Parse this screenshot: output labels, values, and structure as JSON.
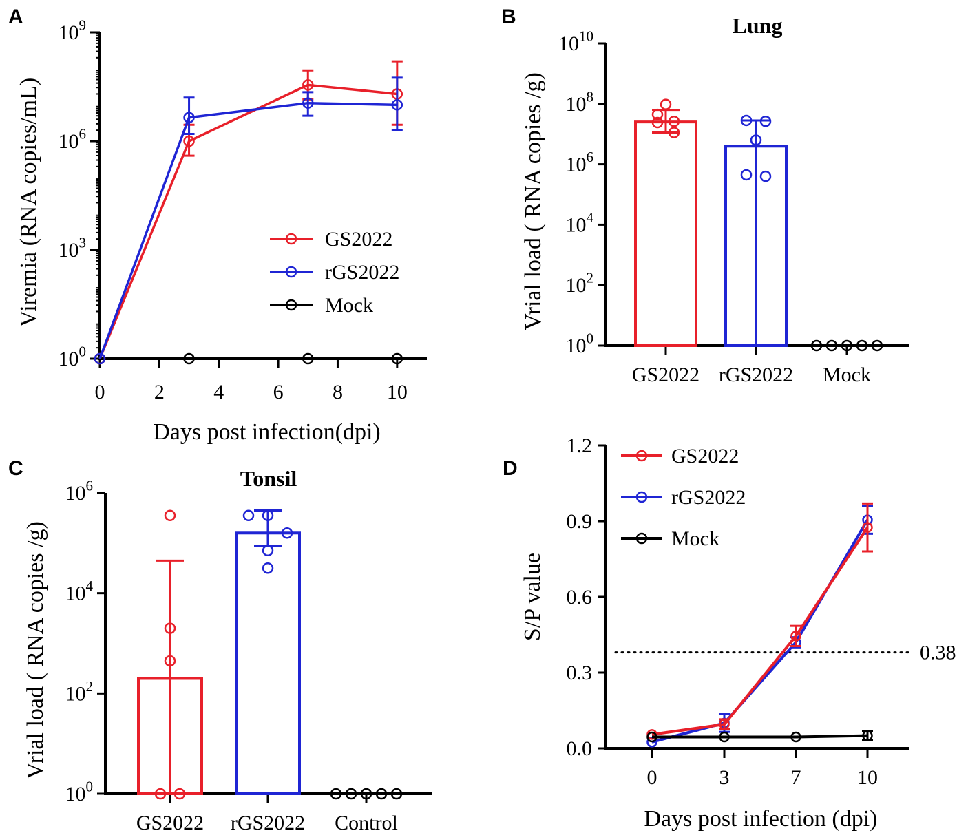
{
  "chart_data": [
    {
      "panel": "A",
      "type": "line",
      "title": "",
      "xlabel": "Days post infection(dpi)",
      "ylabel": "Viremia (RNA copies/mL)",
      "yscale": "log",
      "xlim": [
        0,
        11
      ],
      "ylim_log10": [
        0,
        9
      ],
      "x_ticks": [
        "0",
        "2",
        "4",
        "6",
        "8",
        "10"
      ],
      "y_ticks": [
        {
          "base": "10",
          "exp": "0"
        },
        {
          "base": "10",
          "exp": "3"
        },
        {
          "base": "10",
          "exp": "6"
        },
        {
          "base": "10",
          "exp": "9"
        }
      ],
      "legend": [
        "GS2022",
        "rGS2022",
        "Mock"
      ],
      "legend_position": "center-right",
      "series": [
        {
          "name": "GS2022",
          "color": "#e8202a",
          "x": [
            0,
            3,
            7,
            10
          ],
          "log10_values": [
            0,
            6.0,
            7.55,
            7.3
          ],
          "err_low": [
            0,
            5.6,
            7.15,
            6.45
          ],
          "err_high": [
            0,
            6.45,
            7.95,
            8.2
          ]
        },
        {
          "name": "rGS2022",
          "color": "#1f25d4",
          "x": [
            0,
            3,
            7,
            10
          ],
          "log10_values": [
            0,
            6.65,
            7.05,
            7.0
          ],
          "err_low": [
            0,
            6.2,
            6.7,
            6.3
          ],
          "err_high": [
            0,
            7.2,
            7.35,
            7.75
          ]
        },
        {
          "name": "Mock",
          "color": "#000000",
          "x": [
            0,
            3,
            7,
            10
          ],
          "log10_values": [
            0,
            0,
            0,
            0
          ],
          "err_low": [
            0,
            0,
            0,
            0
          ],
          "err_high": [
            0,
            0,
            0,
            0
          ]
        }
      ]
    },
    {
      "panel": "B",
      "type": "bar",
      "title": "Lung",
      "xlabel": "",
      "ylabel": "Vrial load ( RNA copies /g)",
      "yscale": "log",
      "ylim_log10": [
        0,
        10
      ],
      "categories": [
        "GS2022",
        "rGS2022",
        "Mock"
      ],
      "colors": [
        "#e8202a",
        "#1f25d4",
        "#000000"
      ],
      "y_ticks": [
        {
          "base": "10",
          "exp": "0"
        },
        {
          "base": "10",
          "exp": "2"
        },
        {
          "base": "10",
          "exp": "4"
        },
        {
          "base": "10",
          "exp": "6"
        },
        {
          "base": "10",
          "exp": "8"
        },
        {
          "base": "10",
          "exp": "10"
        }
      ],
      "log10_values": [
        7.4,
        6.6,
        0
      ],
      "err_low": [
        7.05,
        0,
        0
      ],
      "err_high": [
        7.8,
        7.45,
        0
      ],
      "points_log10": [
        [
          7.98,
          7.65,
          7.42,
          7.38,
          7.05
        ],
        [
          7.45,
          7.42,
          6.8,
          5.65,
          5.6
        ],
        [
          0,
          0,
          0,
          0,
          0
        ]
      ]
    },
    {
      "panel": "C",
      "type": "bar",
      "title": "Tonsil",
      "xlabel": "",
      "ylabel": "Vrial load ( RNA copies /g)",
      "yscale": "log",
      "ylim_log10": [
        0,
        6
      ],
      "categories": [
        "GS2022",
        "rGS2022",
        "Control"
      ],
      "colors": [
        "#e8202a",
        "#1f25d4",
        "#000000"
      ],
      "y_ticks": [
        {
          "base": "10",
          "exp": "0"
        },
        {
          "base": "10",
          "exp": "2"
        },
        {
          "base": "10",
          "exp": "4"
        },
        {
          "base": "10",
          "exp": "6"
        }
      ],
      "log10_values": [
        2.3,
        5.2,
        0
      ],
      "err_low": [
        0,
        4.95,
        0
      ],
      "err_high": [
        4.65,
        5.65,
        0
      ],
      "points_log10": [
        [
          5.55,
          3.3,
          2.65,
          0,
          0
        ],
        [
          5.55,
          5.55,
          5.2,
          4.85,
          4.5
        ],
        [
          0,
          0,
          0,
          0,
          0
        ]
      ]
    },
    {
      "panel": "D",
      "type": "line",
      "title": "",
      "xlabel": "Days post infection (dpi)",
      "ylabel": "S/P value",
      "ylim": [
        0,
        1.2
      ],
      "x_categories": [
        "0",
        "3",
        "7",
        "10"
      ],
      "y_ticks": [
        "0.0",
        "0.3",
        "0.6",
        "0.9",
        "1.2"
      ],
      "threshold": {
        "value": 0.38,
        "label": "0.38"
      },
      "legend": [
        "GS2022",
        "rGS2022",
        "Mock"
      ],
      "legend_position": "top-left",
      "series": [
        {
          "name": "rGS2022",
          "color": "#1f25d4",
          "values": [
            0.025,
            0.1,
            0.42,
            0.905
          ],
          "err": [
            0.004,
            0.035,
            0.02,
            0.055
          ]
        },
        {
          "name": "GS2022",
          "color": "#e8202a",
          "values": [
            0.055,
            0.095,
            0.445,
            0.875
          ],
          "err": [
            0.005,
            0.02,
            0.04,
            0.095
          ]
        },
        {
          "name": "Mock",
          "color": "#000000",
          "values": [
            0.045,
            0.045,
            0.045,
            0.05
          ],
          "err": [
            0.004,
            0.004,
            0.004,
            0.018
          ]
        }
      ]
    }
  ]
}
